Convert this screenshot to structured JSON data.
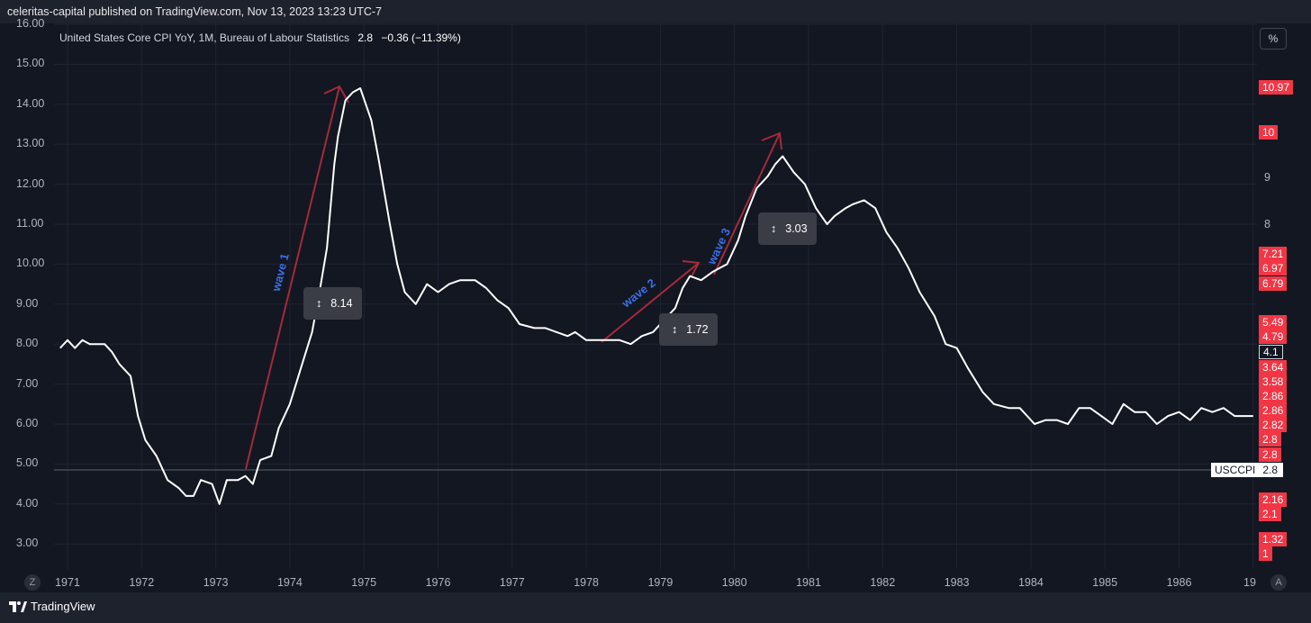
{
  "header": {
    "published": "celeritas-capital published on TradingView.com, Nov 13, 2023 13:23 UTC-7"
  },
  "legend": {
    "title": "United States Core CPI YoY, 1M, Bureau of Labour Statistics",
    "last": "2.8",
    "change": "−0.36 (−11.39%)"
  },
  "scale_button": "%",
  "left_axis": [
    "16.00",
    "15.00",
    "14.00",
    "13.00",
    "12.00",
    "11.00",
    "10.00",
    "9.00",
    "8.00",
    "7.00",
    "6.00",
    "5.00",
    "4.00",
    "3.00"
  ],
  "right_axis": [
    "9",
    "8"
  ],
  "price_tags": {
    "red": [
      "10.97",
      "10",
      "7.21",
      "6.97",
      "6.79",
      "5.49",
      "4.79",
      "3.64",
      "3.58",
      "2.86",
      "2.86",
      "2.82",
      "2.8",
      "2.8",
      "2.16",
      "2.1",
      "1.32",
      "1"
    ],
    "current": "4.1"
  },
  "symbol_tag": {
    "name": "USCCPI",
    "value": "2.8"
  },
  "x_axis": [
    "1971",
    "1972",
    "1973",
    "1974",
    "1975",
    "1976",
    "1977",
    "1978",
    "1979",
    "1980",
    "1981",
    "1982",
    "1983",
    "1984",
    "1985",
    "1986",
    "19"
  ],
  "corner_buttons": {
    "left": "Z",
    "right": "A"
  },
  "measurements": [
    "8.14",
    "1.72",
    "3.03"
  ],
  "annotations": [
    "wave 1",
    "wave 2",
    "wave 3"
  ],
  "brand": "TradingView",
  "colors": {
    "background": "#131722",
    "line": "#ffffff",
    "arrow": "#a52a3a",
    "wave_text": "#3b6fe6",
    "tag": "#f23645"
  },
  "chart_data": {
    "type": "line",
    "title": "United States Core CPI YoY, 1M, Bureau of Labour Statistics",
    "xlabel": "",
    "ylabel": "",
    "ylim": [
      2.5,
      16
    ],
    "series": [
      {
        "name": "USCCPI",
        "x": [
          1970.9,
          1971.0,
          1971.1,
          1971.2,
          1971.3,
          1971.5,
          1971.6,
          1971.7,
          1971.85,
          1971.95,
          1972.05,
          1972.2,
          1972.35,
          1972.5,
          1972.6,
          1972.7,
          1972.8,
          1972.95,
          1973.05,
          1973.15,
          1973.3,
          1973.4,
          1973.5,
          1973.6,
          1973.75,
          1973.85,
          1974.0,
          1974.15,
          1974.3,
          1974.4,
          1974.5,
          1974.6,
          1974.65,
          1974.75,
          1974.85,
          1974.95,
          1975.1,
          1975.2,
          1975.35,
          1975.45,
          1975.55,
          1975.7,
          1975.85,
          1976.0,
          1976.15,
          1976.3,
          1976.5,
          1976.65,
          1976.8,
          1976.95,
          1977.1,
          1977.3,
          1977.45,
          1977.6,
          1977.75,
          1977.85,
          1978.0,
          1978.15,
          1978.3,
          1978.45,
          1978.6,
          1978.75,
          1978.9,
          1979.05,
          1979.2,
          1979.3,
          1979.4,
          1979.55,
          1979.7,
          1979.8,
          1979.9,
          1980.05,
          1980.15,
          1980.3,
          1980.45,
          1980.55,
          1980.65,
          1980.8,
          1980.95,
          1981.1,
          1981.25,
          1981.35,
          1981.5,
          1981.6,
          1981.75,
          1981.9,
          1982.05,
          1982.2,
          1982.35,
          1982.5,
          1982.7,
          1982.85,
          1983.0,
          1983.15,
          1983.35,
          1983.5,
          1983.7,
          1983.85,
          1984.05,
          1984.2,
          1984.35,
          1984.5,
          1984.65,
          1984.8,
          1984.95,
          1985.1,
          1985.25,
          1985.4,
          1985.55,
          1985.7,
          1985.85,
          1986.0,
          1986.15,
          1986.3,
          1986.45,
          1986.6,
          1986.75,
          1986.9,
          1987.0
        ],
        "values": [
          7.9,
          8.1,
          7.9,
          8.1,
          8.0,
          8.0,
          7.8,
          7.5,
          7.2,
          6.2,
          5.6,
          5.2,
          4.6,
          4.4,
          4.2,
          4.2,
          4.6,
          4.5,
          4.0,
          4.6,
          4.6,
          4.7,
          4.5,
          5.1,
          5.2,
          5.9,
          6.5,
          7.4,
          8.3,
          9.3,
          10.4,
          12.5,
          13.2,
          14.1,
          14.3,
          14.4,
          13.6,
          12.6,
          11.0,
          10.0,
          9.3,
          9.0,
          9.5,
          9.3,
          9.5,
          9.6,
          9.6,
          9.4,
          9.1,
          8.9,
          8.5,
          8.4,
          8.4,
          8.3,
          8.2,
          8.3,
          8.1,
          8.1,
          8.1,
          8.1,
          8.0,
          8.2,
          8.3,
          8.6,
          8.9,
          9.4,
          9.7,
          9.6,
          9.8,
          9.9,
          10.0,
          10.6,
          11.2,
          11.9,
          12.2,
          12.5,
          12.7,
          12.3,
          12.0,
          11.4,
          11.0,
          11.2,
          11.4,
          11.5,
          11.6,
          11.4,
          10.8,
          10.4,
          9.9,
          9.3,
          8.7,
          8.0,
          7.9,
          7.4,
          6.8,
          6.5,
          6.4,
          6.4,
          6.0,
          6.1,
          6.1,
          6.0,
          6.4,
          6.4,
          6.2,
          6.0,
          6.5,
          6.3,
          6.3,
          6.0,
          6.2,
          6.3,
          6.1,
          6.4,
          6.3,
          6.4,
          6.2,
          6.2,
          6.2
        ]
      }
    ]
  }
}
